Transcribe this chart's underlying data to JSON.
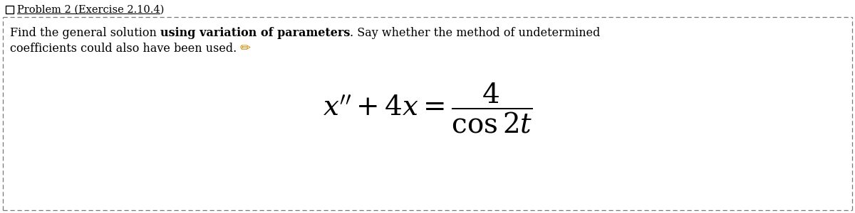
{
  "title": "Problem 2 (Exercise 2.10.4)",
  "instruction_normal1": "Find the general solution ",
  "instruction_bold": "using variation of parameters",
  "instruction_normal2": ". Say whether the method of undetermined",
  "instruction_line2": "coefficients could also have been used.",
  "equation_latex": "$x'' + 4x = \\dfrac{4}{\\cos 2t}$",
  "bg_color": "#ffffff",
  "border_color": "#777777",
  "title_color": "#000000",
  "text_color": "#000000",
  "pencil_color": "#cc8800",
  "fig_width": 12.0,
  "fig_height": 3.0,
  "dpi": 100
}
